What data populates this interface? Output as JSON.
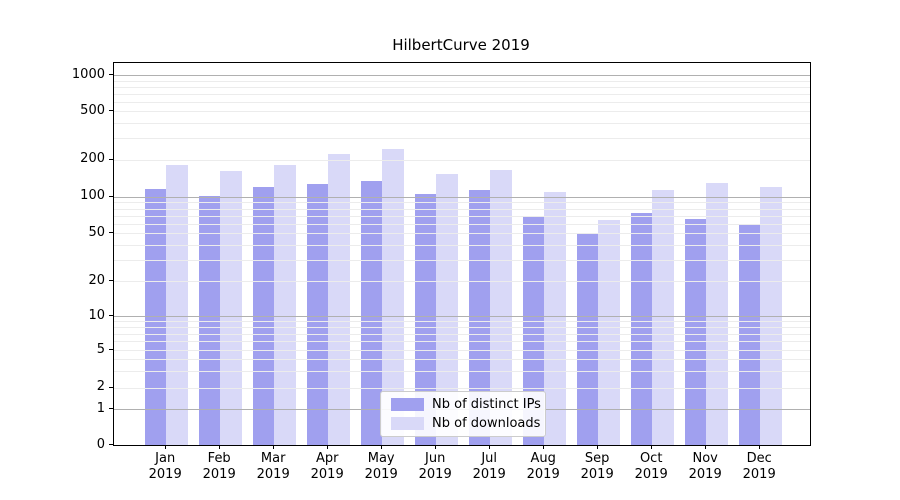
{
  "chart_data": {
    "type": "bar",
    "title": "HilbertCurve 2019",
    "categories": [
      "Jan",
      "Feb",
      "Mar",
      "Apr",
      "May",
      "Jun",
      "Jul",
      "Aug",
      "Sep",
      "Oct",
      "Nov",
      "Dec"
    ],
    "category_year_line": "2019",
    "series": [
      {
        "name": "Nb of distinct IPs",
        "color": "#a0a0ef",
        "values": [
          115,
          101,
          121,
          128,
          135,
          105,
          114,
          70,
          49,
          74,
          65,
          60
        ]
      },
      {
        "name": "Nb of downloads",
        "color": "#d9d9f8",
        "values": [
          181,
          162,
          181,
          224,
          244,
          153,
          166,
          110,
          64,
          113,
          129,
          120
        ]
      }
    ],
    "y_axis": {
      "scale": "symlog",
      "tick_labels": [
        "0",
        "1",
        "2",
        "5",
        "10",
        "20",
        "50",
        "100",
        "200",
        "500",
        "1000"
      ],
      "tick_values": [
        0,
        1,
        2,
        5,
        10,
        20,
        50,
        100,
        200,
        500,
        1000
      ]
    },
    "legend": {
      "position": "lower center",
      "entries": [
        "Nb of distinct IPs",
        "Nb of downloads"
      ]
    },
    "grid": true
  }
}
